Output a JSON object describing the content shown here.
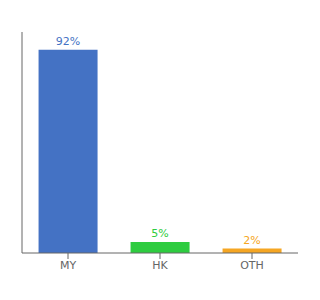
{
  "chart_data": {
    "type": "bar",
    "categories": [
      "MY",
      "HK",
      "OTH"
    ],
    "values": [
      92,
      5,
      2
    ],
    "value_labels": [
      "92%",
      "5%",
      "2%"
    ],
    "colors": [
      "#4472c4",
      "#2ecc40",
      "#f5a623"
    ],
    "ylim": [
      0,
      100
    ],
    "data_labels": true,
    "tick_labels": "x",
    "grid": false
  }
}
